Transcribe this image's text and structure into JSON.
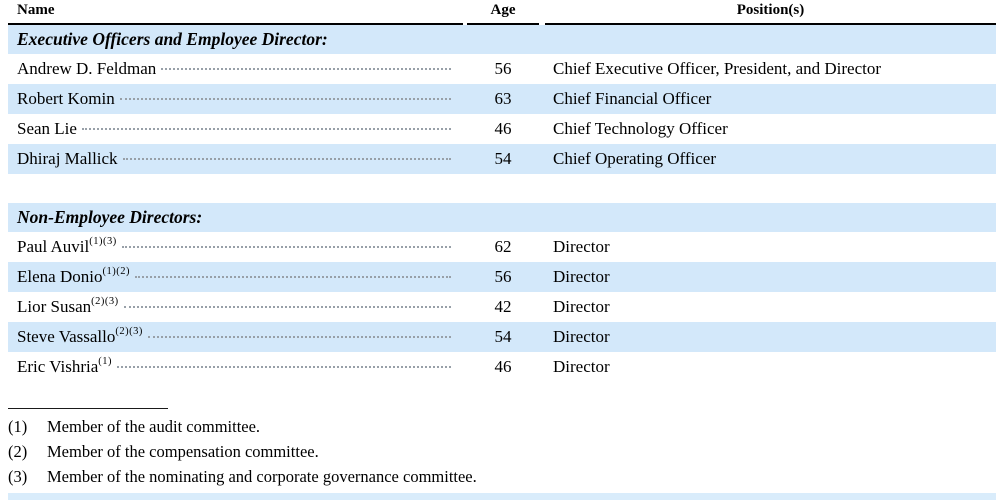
{
  "table": {
    "columns": [
      {
        "label": "Name"
      },
      {
        "label": "Age"
      },
      {
        "label": "Position(s)"
      }
    ],
    "sections": [
      {
        "title": "Executive Officers and Employee Director:",
        "gap_before": false,
        "rows": [
          {
            "name": "Andrew D. Feldman",
            "sup": "",
            "age": "56",
            "position": "Chief Executive Officer, President, and Director",
            "shaded": false
          },
          {
            "name": "Robert Komin",
            "sup": "",
            "age": "63",
            "position": "Chief Financial Officer",
            "shaded": true
          },
          {
            "name": "Sean Lie",
            "sup": "",
            "age": "46",
            "position": "Chief Technology Officer",
            "shaded": false
          },
          {
            "name": "Dhiraj Mallick",
            "sup": "",
            "age": "54",
            "position": "Chief Operating Officer",
            "shaded": true
          }
        ]
      },
      {
        "title": "Non-Employee Directors:",
        "gap_before": true,
        "rows": [
          {
            "name": "Paul Auvil",
            "sup": "(1)(3)",
            "age": "62",
            "position": "Director",
            "shaded": false
          },
          {
            "name": "Elena Donio",
            "sup": "(1)(2)",
            "age": "56",
            "position": "Director",
            "shaded": true
          },
          {
            "name": "Lior Susan",
            "sup": "(2)(3)",
            "age": "42",
            "position": "Director",
            "shaded": false
          },
          {
            "name": "Steve Vassallo",
            "sup": "(2)(3)",
            "age": "54",
            "position": "Director",
            "shaded": true
          },
          {
            "name": "Eric Vishria",
            "sup": "(1)",
            "age": "46",
            "position": "Director",
            "shaded": false
          }
        ]
      }
    ]
  },
  "footnotes": [
    {
      "marker": "(1)",
      "text": "Member of the audit committee."
    },
    {
      "marker": "(2)",
      "text": "Member of the compensation committee."
    },
    {
      "marker": "(3)",
      "text": "Member of the nominating and corporate governance committee."
    }
  ],
  "colors": {
    "row_shade": "#d3e8fa",
    "bottom_strip": "#d9ecfb"
  }
}
